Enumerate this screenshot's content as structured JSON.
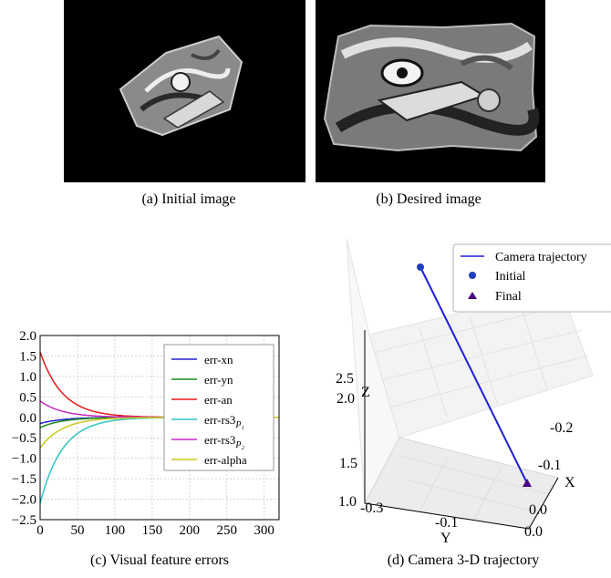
{
  "captions": {
    "a": "(a) Initial image",
    "b": "(b) Desired image",
    "c": "(c) Visual feature errors",
    "d": "(d) Camera 3-D trajectory"
  },
  "chart_data": [
    {
      "type": "line",
      "ylim": [
        -2.5,
        2.0
      ],
      "xlim": [
        0,
        320
      ],
      "xticks": [
        "0",
        "50",
        "100",
        "150",
        "200",
        "250",
        "300"
      ],
      "yticks": [
        "2.0",
        "1.5",
        "1.0",
        "0.5",
        "0.0",
        "−0.5",
        "−1.0",
        "−1.5",
        "−2.0",
        "−2.5"
      ],
      "grid": true,
      "legend_position": "top-right",
      "series": [
        {
          "name": "err-xn",
          "color": "#1f1fd6",
          "start": -0.15,
          "tau": 30
        },
        {
          "name": "err-yn",
          "color": "#1a8a1a",
          "start": -0.25,
          "tau": 30
        },
        {
          "name": "err-an",
          "color": "#e31a1a",
          "start": 1.6,
          "tau": 30
        },
        {
          "name": "err-rs3_P1",
          "label_base": "err-rs3",
          "label_sub": "P₁",
          "color": "#2ec4c4",
          "start": -2.1,
          "tau": 30
        },
        {
          "name": "err-rs3_P2",
          "label_base": "err-rs3",
          "label_sub": "P₂",
          "color": "#c62ac6",
          "start": 0.4,
          "tau": 30
        },
        {
          "name": "err-alpha",
          "color": "#c8c81e",
          "start": -0.75,
          "tau": 30
        }
      ]
    },
    {
      "type": "line3d",
      "x_axis_label": "X",
      "y_axis_label": "Y",
      "z_axis_label": "Z",
      "x_ticks": [
        "-0.2",
        "-0.1",
        "0.0"
      ],
      "y_ticks": [
        "-0.3",
        "-0.1",
        "0.0"
      ],
      "z_ticks": [
        "2.5",
        "2.0",
        "1.5",
        "1.0"
      ],
      "legend_position": "top-right",
      "series": [
        {
          "name": "Camera trajectory",
          "color": "#1f1fd6",
          "marker": "line"
        },
        {
          "name": "Initial",
          "color": "#1f3fbf",
          "marker": "circle"
        },
        {
          "name": "Final",
          "color": "#4b0082",
          "marker": "triangle"
        }
      ]
    }
  ]
}
